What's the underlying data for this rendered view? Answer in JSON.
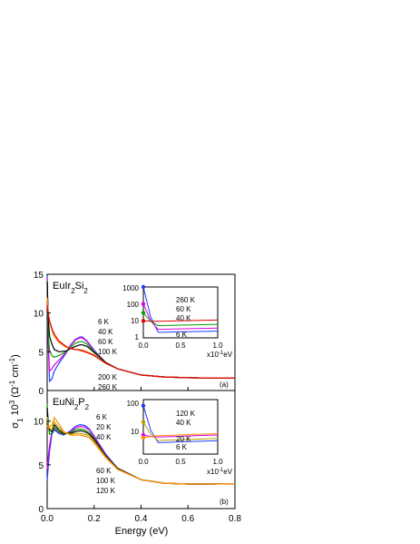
{
  "chart_data": [
    {
      "type": "line",
      "panel_label": "(a)",
      "compound_label": "EuIr2Si2",
      "xlabel": "Energy (eV)",
      "ylabel": "σ1 10^3 (Ω^-1 cm^-1)",
      "xlim": [
        0,
        0.8
      ],
      "ylim": [
        0,
        15
      ],
      "x_ticks": [
        "0.0",
        "0.2",
        "0.4",
        "0.6",
        "0.8"
      ],
      "y_ticks": [
        "0",
        "5",
        "10",
        "15"
      ],
      "series": [
        {
          "name": "6 K",
          "color": "#1f3cff",
          "x": [
            0.0,
            0.005,
            0.01,
            0.02,
            0.03,
            0.05,
            0.08,
            0.1,
            0.12,
            0.14,
            0.15,
            0.17,
            0.2,
            0.25,
            0.3,
            0.4,
            0.5,
            0.6,
            0.7,
            0.8
          ],
          "y": [
            14.8,
            6,
            1.2,
            1.5,
            2.5,
            3.5,
            4.8,
            5.9,
            6.6,
            6.9,
            6.9,
            6.4,
            5.2,
            3.6,
            2.8,
            2.0,
            1.75,
            1.65,
            1.6,
            1.62
          ]
        },
        {
          "name": "40 K",
          "color": "#e000e0",
          "x": [
            0.0,
            0.005,
            0.01,
            0.02,
            0.03,
            0.05,
            0.08,
            0.1,
            0.12,
            0.14,
            0.15,
            0.17,
            0.2,
            0.25,
            0.3,
            0.4,
            0.5,
            0.6,
            0.7,
            0.8
          ],
          "y": [
            14.5,
            6,
            2.5,
            2.8,
            3.3,
            3.9,
            4.9,
            5.8,
            6.5,
            6.8,
            6.8,
            6.3,
            5.1,
            3.6,
            2.8,
            2.0,
            1.75,
            1.65,
            1.6,
            1.62
          ]
        },
        {
          "name": "60 K",
          "color": "#00a000",
          "x": [
            0.0,
            0.005,
            0.01,
            0.02,
            0.03,
            0.05,
            0.08,
            0.1,
            0.12,
            0.14,
            0.15,
            0.17,
            0.2,
            0.25,
            0.3,
            0.4,
            0.5,
            0.6,
            0.7,
            0.8
          ],
          "y": [
            14.2,
            7,
            5.2,
            4.5,
            4.3,
            4.5,
            5.0,
            5.6,
            6.1,
            6.3,
            6.3,
            6.0,
            5.0,
            3.6,
            2.8,
            2.0,
            1.75,
            1.65,
            1.6,
            1.62
          ]
        },
        {
          "name": "100 K",
          "color": "#000000",
          "x": [
            0.0,
            0.005,
            0.01,
            0.02,
            0.03,
            0.05,
            0.08,
            0.1,
            0.12,
            0.14,
            0.15,
            0.17,
            0.2,
            0.25,
            0.3,
            0.4,
            0.5,
            0.6,
            0.7,
            0.8
          ],
          "y": [
            14.0,
            9,
            7.0,
            6.0,
            5.3,
            5.0,
            5.1,
            5.4,
            5.7,
            5.9,
            5.9,
            5.7,
            4.9,
            3.6,
            2.8,
            2.0,
            1.75,
            1.65,
            1.6,
            1.62
          ]
        },
        {
          "name": "200 K",
          "color": "#ff8c00",
          "x": [
            0.0,
            0.005,
            0.01,
            0.02,
            0.03,
            0.05,
            0.08,
            0.1,
            0.12,
            0.14,
            0.15,
            0.17,
            0.2,
            0.25,
            0.3,
            0.4,
            0.5,
            0.6,
            0.7,
            0.8
          ],
          "y": [
            12.0,
            10,
            8.8,
            7.8,
            7.0,
            6.2,
            5.6,
            5.4,
            5.3,
            5.3,
            5.2,
            5.0,
            4.6,
            3.5,
            2.8,
            2.0,
            1.75,
            1.65,
            1.6,
            1.62
          ]
        },
        {
          "name": "260 K",
          "color": "#e00000",
          "x": [
            0.0,
            0.005,
            0.01,
            0.02,
            0.03,
            0.05,
            0.08,
            0.1,
            0.12,
            0.14,
            0.15,
            0.17,
            0.2,
            0.25,
            0.3,
            0.4,
            0.5,
            0.6,
            0.7,
            0.8
          ],
          "y": [
            11.0,
            9.8,
            9.0,
            8.0,
            7.3,
            6.4,
            5.7,
            5.4,
            5.3,
            5.2,
            5.1,
            4.9,
            4.5,
            3.5,
            2.8,
            2.0,
            1.75,
            1.65,
            1.6,
            1.62
          ]
        }
      ],
      "legend_text_upper": [
        "6 K",
        "40 K",
        "60 K",
        "100 K"
      ],
      "legend_text_lower": [
        "200 K",
        "260 K"
      ],
      "inset": {
        "scale": "log-log",
        "ylim": [
          1,
          1000
        ],
        "xlim": [
          0.0,
          1.0
        ],
        "y_ticks": [
          "1",
          "10",
          "100",
          "1000"
        ],
        "x_ticks": [
          "0.0",
          "0.5",
          "1.0"
        ],
        "x_unit": "x10-1eV",
        "labels": [
          "260 K",
          "60 K",
          "40 K",
          "6 K"
        ],
        "dc_points": [
          {
            "name": "6 K",
            "color": "#1f3cff",
            "y": 1000
          },
          {
            "name": "40 K",
            "color": "#e000e0",
            "y": 100
          },
          {
            "name": "60 K",
            "color": "#00a000",
            "y": 30
          },
          {
            "name": "260 K",
            "color": "#e00000",
            "y": 10
          }
        ]
      }
    },
    {
      "type": "line",
      "panel_label": "(b)",
      "compound_label": "EuNi2P2",
      "xlabel": "Energy (eV)",
      "ylabel": "σ1 10^3 (Ω^-1 cm^-1)",
      "xlim": [
        0,
        0.8
      ],
      "ylim": [
        0,
        13.5
      ],
      "x_ticks": [
        "0.0",
        "0.2",
        "0.4",
        "0.6",
        "0.8"
      ],
      "y_ticks": [
        "0",
        "5",
        "10"
      ],
      "series": [
        {
          "name": "6 K",
          "color": "#1f3cff",
          "x": [
            0.0,
            0.005,
            0.01,
            0.02,
            0.03,
            0.05,
            0.07,
            0.1,
            0.12,
            0.14,
            0.16,
            0.18,
            0.2,
            0.25,
            0.3,
            0.4,
            0.5,
            0.6,
            0.7,
            0.8
          ],
          "y": [
            3.2,
            5,
            6.5,
            8.5,
            9.0,
            8.6,
            8.4,
            8.9,
            9.4,
            9.6,
            9.5,
            9.1,
            8.3,
            6.2,
            4.6,
            3.3,
            2.9,
            2.8,
            2.8,
            2.85
          ]
        },
        {
          "name": "20 K",
          "color": "#e000e0",
          "x": [
            0.0,
            0.005,
            0.01,
            0.02,
            0.03,
            0.05,
            0.07,
            0.1,
            0.12,
            0.14,
            0.16,
            0.18,
            0.2,
            0.25,
            0.3,
            0.4,
            0.5,
            0.6,
            0.7,
            0.8
          ],
          "y": [
            4.5,
            6,
            7.2,
            8.8,
            9.2,
            8.7,
            8.5,
            8.8,
            9.2,
            9.4,
            9.3,
            9.0,
            8.2,
            6.1,
            4.6,
            3.3,
            2.9,
            2.8,
            2.8,
            2.85
          ]
        },
        {
          "name": "40 K",
          "color": "#00a000",
          "x": [
            0.0,
            0.005,
            0.01,
            0.02,
            0.03,
            0.05,
            0.07,
            0.1,
            0.12,
            0.14,
            0.16,
            0.18,
            0.2,
            0.25,
            0.3,
            0.4,
            0.5,
            0.6,
            0.7,
            0.8
          ],
          "y": [
            12.0,
            9.5,
            8.5,
            8.6,
            9.3,
            8.8,
            8.5,
            8.7,
            9.0,
            9.1,
            9.0,
            8.7,
            8.0,
            6.0,
            4.6,
            3.3,
            2.9,
            2.8,
            2.8,
            2.85
          ]
        },
        {
          "name": "60 K",
          "color": "#000000",
          "x": [
            0.0,
            0.005,
            0.01,
            0.02,
            0.03,
            0.05,
            0.07,
            0.1,
            0.12,
            0.14,
            0.16,
            0.18,
            0.2,
            0.25,
            0.3,
            0.4,
            0.5,
            0.6,
            0.7,
            0.8
          ],
          "y": [
            11.5,
            9.5,
            9.0,
            8.8,
            9.6,
            9.0,
            8.6,
            8.6,
            8.8,
            8.9,
            8.8,
            8.5,
            7.9,
            6.0,
            4.6,
            3.3,
            2.9,
            2.8,
            2.8,
            2.85
          ]
        },
        {
          "name": "100 K",
          "color": "#b8a000",
          "x": [
            0.0,
            0.005,
            0.01,
            0.02,
            0.03,
            0.05,
            0.07,
            0.1,
            0.12,
            0.14,
            0.16,
            0.18,
            0.2,
            0.25,
            0.3,
            0.4,
            0.5,
            0.6,
            0.7,
            0.8
          ],
          "y": [
            10.5,
            9.5,
            9.2,
            9.0,
            9.9,
            9.3,
            8.7,
            8.5,
            8.6,
            8.6,
            8.5,
            8.3,
            7.7,
            5.9,
            4.5,
            3.3,
            2.9,
            2.8,
            2.8,
            2.85
          ]
        },
        {
          "name": "120 K",
          "color": "#ff8c00",
          "x": [
            0.0,
            0.005,
            0.01,
            0.02,
            0.03,
            0.05,
            0.07,
            0.1,
            0.12,
            0.14,
            0.16,
            0.18,
            0.2,
            0.25,
            0.3,
            0.4,
            0.5,
            0.6,
            0.7,
            0.8
          ],
          "y": [
            9.5,
            9.2,
            9.4,
            9.5,
            10.4,
            9.7,
            8.8,
            8.4,
            8.4,
            8.4,
            8.3,
            8.1,
            7.5,
            5.8,
            4.5,
            3.3,
            2.9,
            2.8,
            2.8,
            2.85
          ]
        }
      ],
      "legend_text_upper": [
        "6 K",
        "20 K",
        "40 K"
      ],
      "legend_text_lower": [
        "60 K",
        "100 K",
        "120 K"
      ],
      "inset": {
        "scale": "log-log",
        "ylim": [
          1,
          200
        ],
        "xlim": [
          0.0,
          1.0
        ],
        "y_ticks": [
          "10",
          "100"
        ],
        "x_ticks": [
          "0.0",
          "0.5",
          "1.0"
        ],
        "x_unit": "x10-1eV",
        "labels": [
          "120 K",
          "40 K",
          "20 K",
          "6 K"
        ],
        "dc_points": [
          {
            "name": "6 K",
            "color": "#1f3cff",
            "y": 120
          },
          {
            "name": "20 K",
            "color": "#b8a000",
            "y": 30
          },
          {
            "name": "40 K",
            "color": "#e000e0",
            "y": 10
          },
          {
            "name": "120 K",
            "color": "#ff8c00",
            "y": 8
          }
        ]
      }
    }
  ]
}
